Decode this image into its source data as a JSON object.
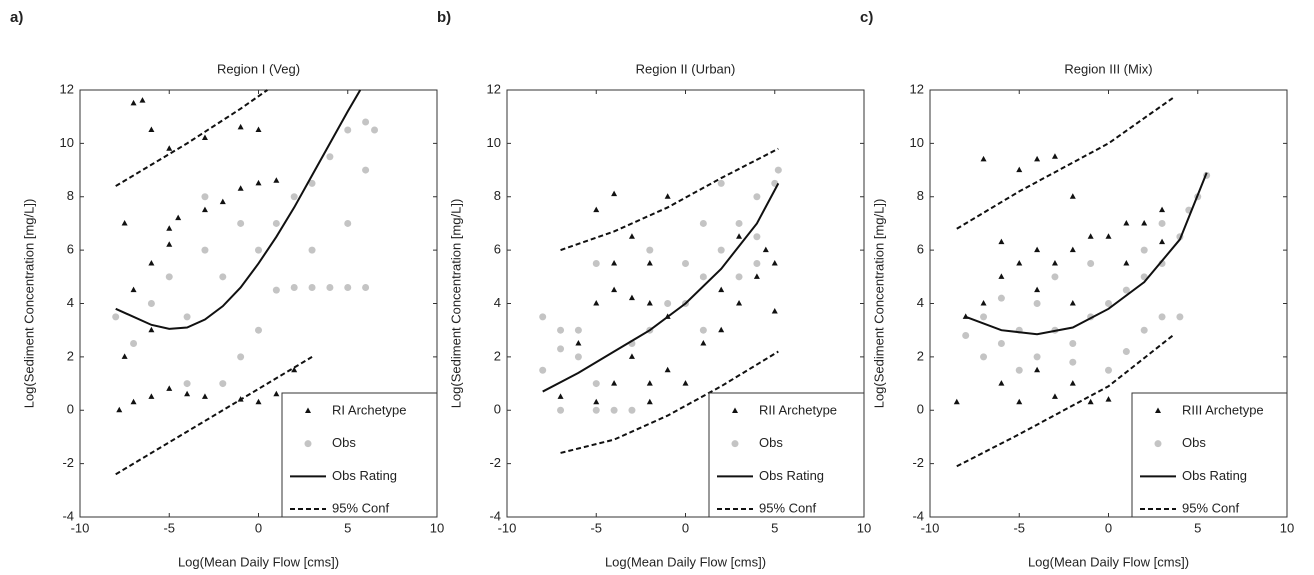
{
  "chart_data": [
    {
      "type": "scatter",
      "panel_label": "a)",
      "title": "Region I (Veg)",
      "xlabel": "Log(Mean Daily Flow [cms])",
      "ylabel": "Log(Sediment Concentration [mg/L])",
      "xlim": [
        -10,
        10
      ],
      "ylim": [
        -4,
        12
      ],
      "xticks": [
        -10,
        -5,
        0,
        5,
        10
      ],
      "yticks": [
        -4,
        -2,
        0,
        2,
        4,
        6,
        8,
        10,
        12
      ],
      "grid": false,
      "legend": "lower right",
      "series": [
        {
          "name": "RI Archetype",
          "type": "scatter",
          "marker": "triangle",
          "color": "#111111",
          "x": [
            -7,
            -6.5,
            -6,
            -5,
            -3,
            -1,
            0,
            -7.5,
            -5,
            -4.5,
            -3,
            -2,
            -1,
            0,
            1,
            -5,
            -6,
            -7,
            -7.5,
            -7,
            -6,
            -5,
            -4,
            -3,
            -1,
            0,
            1,
            2,
            -7.8,
            -6
          ],
          "values": [
            11.5,
            11.6,
            10.5,
            9.8,
            10.2,
            10.6,
            10.5,
            7,
            6.8,
            7.2,
            7.5,
            7.8,
            8.3,
            8.5,
            8.6,
            6.2,
            5.5,
            4.5,
            2,
            0.3,
            0.5,
            0.8,
            0.6,
            0.5,
            0.4,
            0.3,
            0.6,
            1.5,
            0,
            3
          ]
        },
        {
          "name": "Obs",
          "type": "scatter",
          "marker": "circle",
          "color": "#c4c4c4",
          "x": [
            -8,
            -7,
            -6,
            -5,
            -4,
            -3,
            -2,
            -1,
            0,
            1,
            2,
            3,
            4,
            5,
            6,
            6.5,
            6,
            5,
            3,
            2,
            4,
            6,
            -2,
            -1,
            0,
            1,
            -4,
            -3,
            5,
            3
          ],
          "values": [
            3.5,
            2.5,
            4,
            5,
            3.5,
            6,
            5,
            7,
            6,
            7,
            8,
            8.5,
            9.5,
            10.5,
            10.8,
            10.5,
            9,
            7,
            6,
            4.6,
            4.6,
            4.6,
            1,
            2,
            3,
            4.5,
            1,
            8,
            4.6,
            4.6
          ]
        },
        {
          "name": "Obs Rating",
          "type": "line",
          "line_style": "solid",
          "color": "#111111",
          "x": [
            -8,
            -6,
            -5,
            -4,
            -3,
            -2,
            -1,
            0,
            1,
            2,
            3,
            4,
            5,
            5.7
          ],
          "values": [
            3.8,
            3.2,
            3.05,
            3.1,
            3.4,
            3.9,
            4.6,
            5.5,
            6.5,
            7.6,
            8.8,
            10,
            11.2,
            12
          ]
        },
        {
          "name": "95% Conf",
          "type": "line",
          "line_style": "dashed",
          "color": "#111111",
          "x": [
            -8,
            -4,
            -1,
            0.5,
            null,
            -8,
            -4,
            0,
            3
          ],
          "values": [
            8.4,
            10,
            11.3,
            12,
            null,
            -2.4,
            -0.8,
            0.8,
            2.0
          ]
        }
      ]
    },
    {
      "type": "scatter",
      "panel_label": "b)",
      "title": "Region II (Urban)",
      "xlabel": "Log(Mean Daily Flow [cms])",
      "ylabel": "Log(Sediment Concentration [mg/L])",
      "xlim": [
        -10,
        10
      ],
      "ylim": [
        -4,
        12
      ],
      "xticks": [
        -10,
        -5,
        0,
        5,
        10
      ],
      "yticks": [
        -4,
        -2,
        0,
        2,
        4,
        6,
        8,
        10,
        12
      ],
      "grid": false,
      "legend": "lower right",
      "series": [
        {
          "name": "RII Archetype",
          "type": "scatter",
          "marker": "triangle",
          "color": "#111111",
          "x": [
            -7,
            -5,
            -4,
            -3,
            -2,
            -1,
            0,
            -6,
            -5,
            -4,
            -3,
            -2,
            -1,
            -4,
            -3,
            -2,
            -1,
            -5,
            1,
            2,
            3,
            4,
            5,
            4.5,
            3,
            1,
            2,
            5,
            -2,
            -4
          ],
          "values": [
            0.5,
            0.3,
            1,
            2,
            1,
            1.5,
            1,
            2.5,
            4,
            4.5,
            4.2,
            4,
            3.5,
            5.5,
            6.5,
            5.5,
            8,
            7.5,
            2.5,
            3,
            4,
            5,
            5.5,
            6,
            6.5,
            5,
            4.5,
            3.7,
            0.3,
            8.1
          ]
        },
        {
          "name": "Obs",
          "type": "scatter",
          "marker": "circle",
          "color": "#c4c4c4",
          "x": [
            -8,
            -8,
            -7,
            -7,
            -6,
            -6,
            -5,
            -5,
            -4,
            -3,
            -2,
            -1,
            0,
            1,
            1,
            2,
            2,
            3,
            4,
            4,
            5,
            5.2,
            3,
            0,
            -3,
            -5,
            -2,
            1,
            4,
            -7
          ],
          "values": [
            3.5,
            1.5,
            3,
            0,
            2,
            3,
            5.5,
            1,
            0,
            2.5,
            3,
            4,
            4,
            5,
            7,
            6,
            8.5,
            7,
            6.5,
            8,
            8.5,
            9,
            5,
            5.5,
            0,
            0,
            6,
            3,
            5.5,
            2.3
          ]
        },
        {
          "name": "Obs Rating",
          "type": "line",
          "line_style": "solid",
          "color": "#111111",
          "x": [
            -8,
            -6,
            -4,
            -2,
            0,
            2,
            4,
            5.2
          ],
          "values": [
            0.7,
            1.4,
            2.2,
            3,
            4,
            5.3,
            7,
            8.5
          ]
        },
        {
          "name": "95% Conf",
          "type": "line",
          "line_style": "dashed",
          "color": "#111111",
          "x": [
            -7,
            -4,
            -1,
            2,
            5.2,
            null,
            -7,
            -4,
            -1,
            2,
            5.2
          ],
          "values": [
            6,
            6.7,
            7.6,
            8.7,
            9.8,
            null,
            -1.6,
            -1.1,
            -0.2,
            0.9,
            2.2
          ]
        }
      ]
    },
    {
      "type": "scatter",
      "panel_label": "c)",
      "title": "Region III (Mix)",
      "xlabel": "Log(Mean Daily Flow [cms])",
      "ylabel": "Log(Sediment Concentration [mg/L])",
      "xlim": [
        -10,
        10
      ],
      "ylim": [
        -4,
        12
      ],
      "xticks": [
        -10,
        -5,
        0,
        5,
        10
      ],
      "yticks": [
        -4,
        -2,
        0,
        2,
        4,
        6,
        8,
        10,
        12
      ],
      "grid": false,
      "legend": "lower right",
      "series": [
        {
          "name": "RIII Archetype",
          "type": "scatter",
          "marker": "triangle",
          "color": "#111111",
          "x": [
            -8.5,
            -8,
            -7,
            -6,
            -5,
            -4,
            -3,
            -2,
            -1,
            0,
            1,
            2,
            3,
            -5,
            -4,
            -3,
            -2,
            -7,
            -6,
            -5,
            -4,
            -3,
            -2,
            -1,
            0,
            -6,
            -4,
            -2,
            1,
            3
          ],
          "values": [
            0.3,
            3.5,
            4,
            5,
            5.5,
            6,
            5.5,
            6,
            6.5,
            6.5,
            7,
            7,
            7.5,
            9,
            9.4,
            9.5,
            8,
            9.4,
            1,
            0.3,
            1.5,
            0.5,
            1,
            0.3,
            0.4,
            6.3,
            4.5,
            4,
            5.5,
            6.3
          ]
        },
        {
          "name": "Obs",
          "type": "scatter",
          "marker": "circle",
          "color": "#c4c4c4",
          "x": [
            -8,
            -7,
            -6,
            -5,
            -4,
            -3,
            -2,
            -1,
            0,
            1,
            2,
            3,
            4,
            5,
            5.5,
            4.5,
            3,
            2,
            1,
            -1,
            -3,
            -2,
            0,
            4,
            -5,
            -7,
            2,
            -4,
            3,
            -6
          ],
          "values": [
            2.8,
            2,
            2.5,
            3,
            2,
            3,
            2.5,
            3.5,
            4,
            4.5,
            5,
            5.5,
            6.5,
            8,
            8.8,
            7.5,
            3.5,
            3,
            2.2,
            5.5,
            5,
            1.8,
            1.5,
            3.5,
            1.5,
            3.5,
            6,
            4,
            7,
            4.2
          ]
        },
        {
          "name": "Obs Rating",
          "type": "line",
          "line_style": "solid",
          "color": "#111111",
          "x": [
            -8,
            -6,
            -4,
            -2,
            0,
            2,
            4,
            5.5
          ],
          "values": [
            3.5,
            3,
            2.85,
            3.1,
            3.8,
            4.8,
            6.4,
            8.9
          ]
        },
        {
          "name": "95% Conf",
          "type": "line",
          "line_style": "dashed",
          "color": "#111111",
          "x": [
            -8.5,
            -5,
            0,
            3.6,
            null,
            -8.5,
            -5,
            0,
            3.6
          ],
          "values": [
            6.8,
            8.2,
            10,
            11.7,
            null,
            -2.1,
            -0.9,
            0.9,
            2.8
          ]
        }
      ]
    }
  ]
}
